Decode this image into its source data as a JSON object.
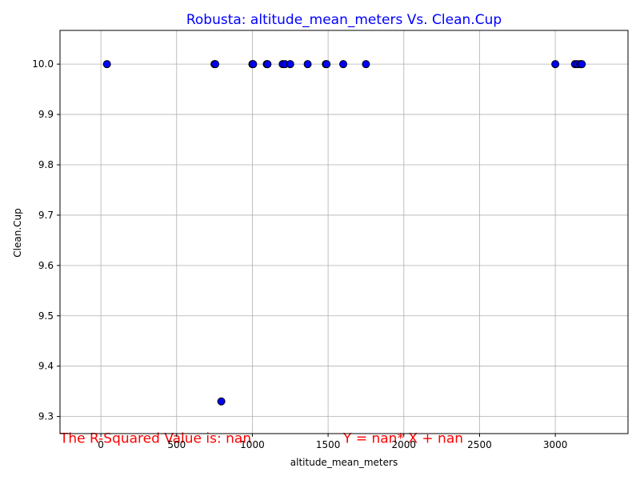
{
  "chart_data": {
    "type": "scatter",
    "title": "Robusta: altitude_mean_meters Vs. Clean.Cup",
    "xlabel": "altitude_mean_meters",
    "ylabel": "Clean.Cup",
    "xlim": [
      -270,
      3480
    ],
    "ylim": [
      9.266,
      10.067
    ],
    "xticks": [
      0,
      500,
      1000,
      1500,
      2000,
      2500,
      3000
    ],
    "xtick_labels": [
      "0",
      "500",
      "1000",
      "1500",
      "2000",
      "2500",
      "3000"
    ],
    "yticks": [
      9.3,
      9.4,
      9.5,
      9.6,
      9.7,
      9.8,
      9.9,
      10.0
    ],
    "ytick_labels": [
      "9.3",
      "9.4",
      "9.5",
      "9.6",
      "9.7",
      "9.8",
      "9.9",
      "10.0"
    ],
    "grid": true,
    "points": [
      {
        "x": 40,
        "y": 10.0
      },
      {
        "x": 750,
        "y": 10.0
      },
      {
        "x": 755,
        "y": 10.0
      },
      {
        "x": 795,
        "y": 9.33
      },
      {
        "x": 1000,
        "y": 10.0
      },
      {
        "x": 1005,
        "y": 10.0
      },
      {
        "x": 1095,
        "y": 10.0
      },
      {
        "x": 1100,
        "y": 10.0
      },
      {
        "x": 1200,
        "y": 10.0
      },
      {
        "x": 1215,
        "y": 10.0
      },
      {
        "x": 1250,
        "y": 10.0
      },
      {
        "x": 1365,
        "y": 10.0
      },
      {
        "x": 1485,
        "y": 10.0
      },
      {
        "x": 1490,
        "y": 10.0
      },
      {
        "x": 1600,
        "y": 10.0
      },
      {
        "x": 1750,
        "y": 10.0
      },
      {
        "x": 3000,
        "y": 10.0
      },
      {
        "x": 3130,
        "y": 10.0
      },
      {
        "x": 3145,
        "y": 10.0
      },
      {
        "x": 3165,
        "y": 10.0
      },
      {
        "x": 3175,
        "y": 10.0
      }
    ],
    "annotations": [
      {
        "text": "The R-Squared Value is: nan",
        "x": -270,
        "y": 9.27
      },
      {
        "text": "Y = nan* X + nan",
        "x": 1600,
        "y": 9.27
      }
    ],
    "colors": {
      "title": "#0000ff",
      "marker_fill": "#0000ff",
      "marker_edge": "#000000",
      "annotation": "#ff0000",
      "grid": "#b0b0b0",
      "axes": "#000000"
    }
  }
}
